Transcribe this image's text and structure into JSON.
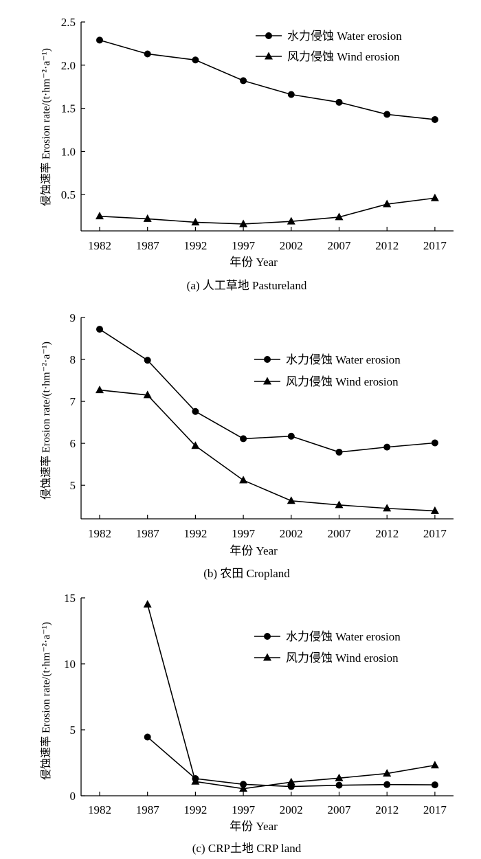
{
  "chart_data": [
    {
      "type": "line",
      "caption": "(a) 人工草地 Pastureland",
      "xlabel": "年份 Year",
      "ylabel": "侵蚀速率 Erosion rate/(t·hm⁻²·a⁻¹)",
      "categories": [
        "1982",
        "1987",
        "1992",
        "1997",
        "2002",
        "2007",
        "2012",
        "2017"
      ],
      "y_ticks": [
        "0.5",
        "1.0",
        "1.5",
        "2.0",
        "2.5"
      ],
      "ylim": [
        0.08,
        2.5
      ],
      "legend_position": "top-right",
      "series": [
        {
          "name": "水力侵蚀 Water erosion",
          "marker": "circle",
          "values": [
            2.29,
            2.13,
            2.06,
            1.82,
            1.66,
            1.57,
            1.43,
            1.37
          ]
        },
        {
          "name": "风力侵蚀 Wind erosion",
          "marker": "triangle",
          "values": [
            0.25,
            0.22,
            0.18,
            0.16,
            0.19,
            0.24,
            0.39,
            0.46
          ]
        }
      ]
    },
    {
      "type": "line",
      "caption": "(b) 农田 Cropland",
      "xlabel": "年份 Year",
      "ylabel": "侵蚀速率 Erosion rate/(t·hm⁻²·a⁻¹)",
      "categories": [
        "1982",
        "1987",
        "1992",
        "1997",
        "2002",
        "2007",
        "2012",
        "2017"
      ],
      "y_ticks": [
        "5",
        "6",
        "7",
        "8",
        "9"
      ],
      "ylim": [
        4.2,
        9.0
      ],
      "legend_position": "right",
      "series": [
        {
          "name": "水力侵蚀 Water erosion",
          "marker": "circle",
          "values": [
            8.72,
            7.98,
            6.76,
            6.11,
            6.17,
            5.79,
            5.91,
            6.01
          ]
        },
        {
          "name": "风力侵蚀 Wind erosion",
          "marker": "triangle",
          "values": [
            7.27,
            7.15,
            5.94,
            5.12,
            4.63,
            4.53,
            4.45,
            4.39
          ]
        }
      ]
    },
    {
      "type": "line",
      "caption": "(c) CRP土地 CRP land",
      "xlabel": "年份 Year",
      "ylabel": "侵蚀速率 Erosion rate/(t·hm⁻²·a⁻¹)",
      "categories": [
        "1982",
        "1987",
        "1992",
        "1997",
        "2002",
        "2007",
        "2012",
        "2017"
      ],
      "y_ticks": [
        "0",
        "5",
        "10",
        "15"
      ],
      "ylim": [
        0,
        15
      ],
      "legend_position": "right",
      "series": [
        {
          "name": "水力侵蚀 Water erosion",
          "marker": "circle",
          "values": [
            null,
            4.45,
            1.3,
            0.87,
            0.7,
            0.8,
            0.85,
            0.83
          ]
        },
        {
          "name": "风力侵蚀 Wind erosion",
          "marker": "triangle",
          "values": [
            null,
            14.5,
            1.08,
            0.54,
            1.03,
            1.34,
            1.69,
            2.31
          ]
        }
      ]
    }
  ]
}
